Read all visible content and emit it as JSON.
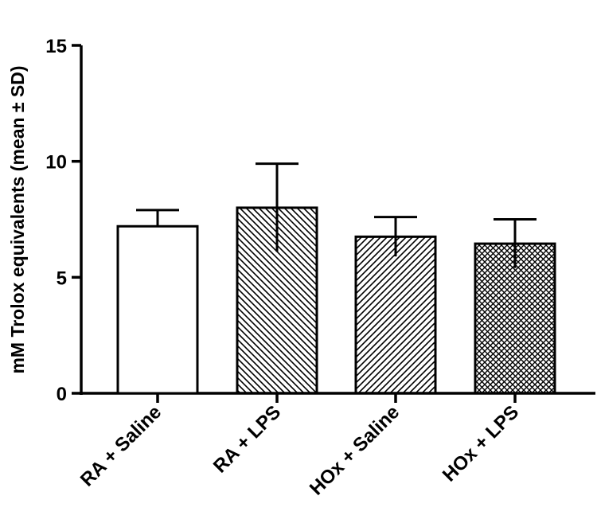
{
  "chart_data": {
    "type": "bar",
    "title": "",
    "xlabel": "",
    "ylabel": "mM Trolox equivalents (mean ± SD)",
    "ylim": [
      0,
      15
    ],
    "yticks": [
      0,
      5,
      10,
      15
    ],
    "grid": false,
    "legend": "none",
    "categories": [
      "RA + Saline",
      "RA + LPS",
      "HOx + Saline",
      "HOx + LPS"
    ],
    "values": [
      7.2,
      8.0,
      6.75,
      6.45
    ],
    "error_sd": [
      0.7,
      1.9,
      0.85,
      1.05
    ],
    "fills": [
      "none",
      "hatch-back-diagonal",
      "hatch-forward-diagonal",
      "crosshatch"
    ]
  },
  "colors": {
    "axis": "#000000",
    "bar_stroke": "#000000",
    "bar_fill": "#ffffff"
  }
}
